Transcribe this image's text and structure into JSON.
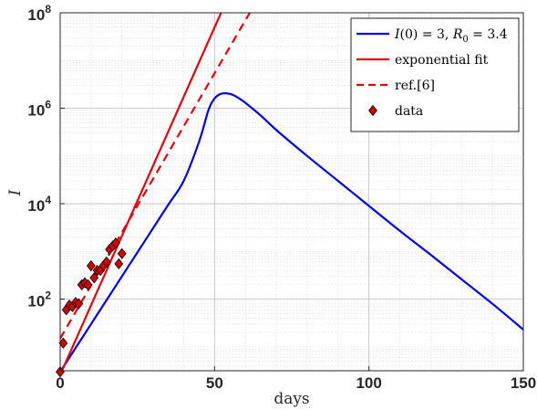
{
  "chart_data": {
    "type": "line",
    "title": "",
    "xlabel": "days",
    "ylabel": "I",
    "xlim": [
      0,
      150
    ],
    "ylim_log10": [
      0.5,
      8
    ],
    "yscale": "log",
    "grid": "on (major and minor)",
    "legend_placement": "top-right",
    "x_ticks": [
      0,
      50,
      100,
      150
    ],
    "y_ticks": [
      {
        "exp": 2,
        "base": "10",
        "sup": "2"
      },
      {
        "exp": 4,
        "base": "10",
        "sup": "4"
      },
      {
        "exp": 6,
        "base": "10",
        "sup": "6"
      },
      {
        "exp": 8,
        "base": "10",
        "sup": "8"
      }
    ],
    "series": [
      {
        "name": "I(0) = 3, R0 = 3.4",
        "legend_parts": {
          "a": "I",
          "b": "(0) = 3, ",
          "c": "R",
          "sub": "0",
          "d": " = 3.4"
        },
        "style": "solid",
        "color": "#0000ee",
        "x": [
          0,
          5,
          10,
          15,
          20,
          25,
          30,
          35,
          40,
          45,
          48,
          50,
          52,
          54,
          56,
          58,
          60,
          65,
          70,
          80,
          90,
          100,
          110,
          120,
          130,
          140,
          150
        ],
        "y": [
          3,
          9.5,
          30,
          95,
          300,
          950,
          3000,
          9500,
          30000,
          200000,
          900000,
          1600000,
          2000000,
          2050000,
          1900000,
          1600000,
          1300000,
          700000,
          350000,
          100000,
          30000,
          9000,
          2700,
          850,
          260,
          80,
          23
        ]
      },
      {
        "name": "exponential fit",
        "style": "solid",
        "color": "#e8000b",
        "x": [
          0,
          52.1
        ],
        "y": [
          2.6,
          100000000
        ]
      },
      {
        "name": "ref.[6]",
        "style": "dashed",
        "color": "#e8000b",
        "x": [
          0,
          61.4
        ],
        "y": [
          15,
          100000000
        ]
      },
      {
        "name": "data",
        "style": "marker-diamond",
        "color": "#d40000",
        "points": [
          [
            0,
            3
          ],
          [
            1,
            12
          ],
          [
            2,
            60
          ],
          [
            3,
            75
          ],
          [
            4,
            70
          ],
          [
            5,
            85
          ],
          [
            6,
            80
          ],
          [
            7,
            200
          ],
          [
            8,
            220
          ],
          [
            9,
            200
          ],
          [
            10,
            500
          ],
          [
            11,
            280
          ],
          [
            12,
            400
          ],
          [
            13,
            400
          ],
          [
            14,
            500
          ],
          [
            15,
            600
          ],
          [
            16,
            1100
          ],
          [
            17,
            1300
          ],
          [
            18,
            1500
          ],
          [
            19,
            550
          ],
          [
            20,
            900
          ]
        ]
      }
    ]
  }
}
